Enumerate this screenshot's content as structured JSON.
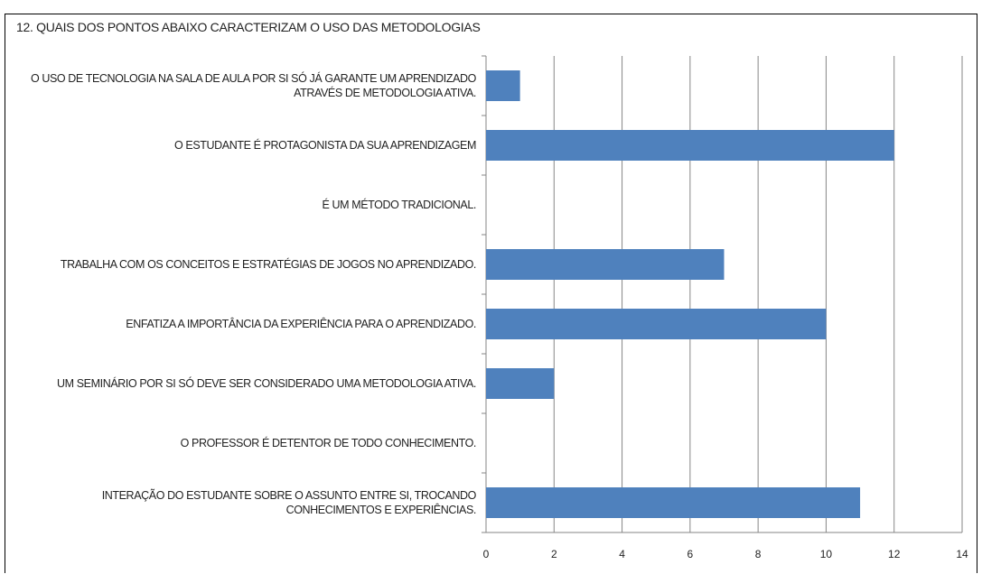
{
  "chart_data": {
    "type": "bar",
    "orientation": "horizontal",
    "title": "12. QUAIS DOS PONTOS ABAIXO CARACTERIZAM O USO DAS METODOLOGIAS",
    "categories": [
      "O USO DE TECNOLOGIA NA SALA DE AULA POR SI SÓ JÁ GARANTE UM APRENDIZADO ATRAVÉS DE METODOLOGIA ATIVA.",
      "O ESTUDANTE É PROTAGONISTA DA SUA APRENDIZAGEM",
      "É UM MÉTODO TRADICIONAL.",
      "TRABALHA COM OS CONCEITOS E ESTRATÉGIAS DE JOGOS NO APRENDIZADO.",
      "ENFATIZA A IMPORTÂNCIA DA EXPERIÊNCIA PARA O APRENDIZADO.",
      "UM SEMINÁRIO POR SI SÓ DEVE SER CONSIDERADO UMA METODOLOGIA ATIVA.",
      "O PROFESSOR É DETENTOR DE TODO CONHECIMENTO.",
      "INTERAÇÃO DO ESTUDANTE SOBRE O ASSUNTO ENTRE SI, TROCANDO CONHECIMENTOS E EXPERIÊNCIAS."
    ],
    "values": [
      1,
      12,
      0,
      7,
      10,
      2,
      0,
      11
    ],
    "color": "#4f81bd",
    "xlim": [
      0,
      14
    ],
    "xticks": [
      0,
      2,
      4,
      6,
      8,
      10,
      12,
      14
    ],
    "grid": true
  }
}
